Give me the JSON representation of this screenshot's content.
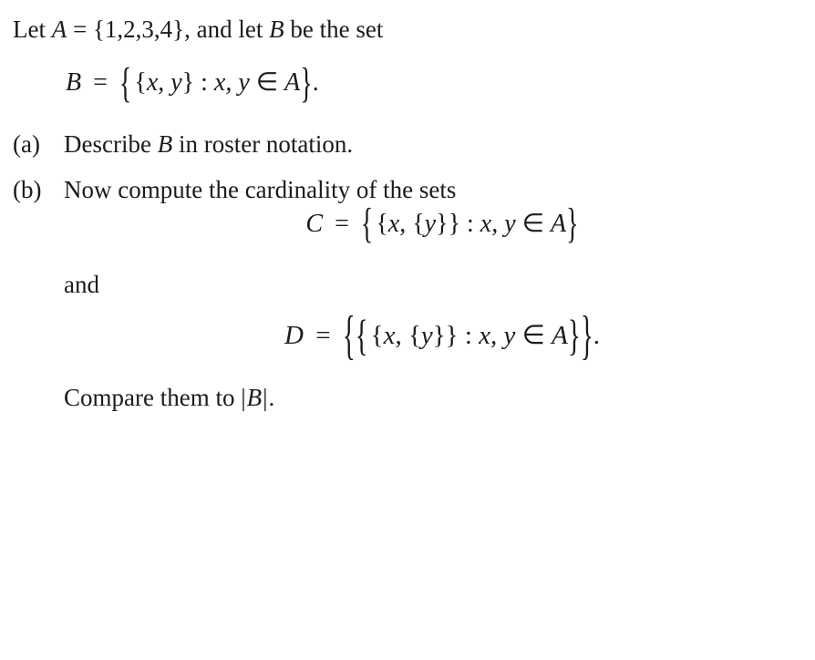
{
  "intro": {
    "pre": "Let ",
    "A": "A",
    "eq": " = ",
    "set": "{1,2,3,4}",
    "mid": ", and let ",
    "B": "B",
    "post": " be the set"
  },
  "eqB": {
    "lhs": "B",
    "eq": "=",
    "setOpen": "{",
    "innerOpen": "{",
    "xy": "x, y",
    "innerClose": "}",
    "colon": ":",
    "cond_xy": "x, y",
    "in": "∈",
    "cond_A": "A",
    "setClose": "}",
    "period": "."
  },
  "partA": {
    "marker": "(a)",
    "text1": "Describe ",
    "B": "B",
    "text2": " in roster notation."
  },
  "partB": {
    "marker": "(b)",
    "text1": "Now compute the cardinality of the sets",
    "and": "and",
    "final1": "Compare them to ",
    "final_abs": "|B|",
    "final2": "."
  },
  "eqC": {
    "lhs": "C",
    "eq": "=",
    "setOpen": "{",
    "innerOpen": "{",
    "x": "x",
    "comma": ",",
    "yOpen": "{",
    "y": "y",
    "yClose": "}",
    "innerClose": "}",
    "colon": ":",
    "cond_xy": "x, y",
    "in": "∈",
    "cond_A": "A",
    "setClose": "}"
  },
  "eqD": {
    "lhs": "D",
    "eq": "=",
    "outerOpen": "{",
    "setOpen": "{",
    "innerOpen": "{",
    "x": "x",
    "comma": ",",
    "yOpen": "{",
    "y": "y",
    "yClose": "}",
    "innerClose": "}",
    "colon": ":",
    "cond_xy": "x, y",
    "in": "∈",
    "cond_A": "A",
    "setClose": "}",
    "outerClose": "}",
    "period": "."
  },
  "style": {
    "text_color": "#1b1b1b",
    "background_color": "#ffffff",
    "font_family": "Palatino Linotype, Book Antiqua, Palatino, Georgia, serif",
    "body_fontsize_pt": 20,
    "eq_fontsize_pt": 21,
    "brace_scales": [
      1.0,
      1.35,
      1.65,
      2.05
    ]
  }
}
